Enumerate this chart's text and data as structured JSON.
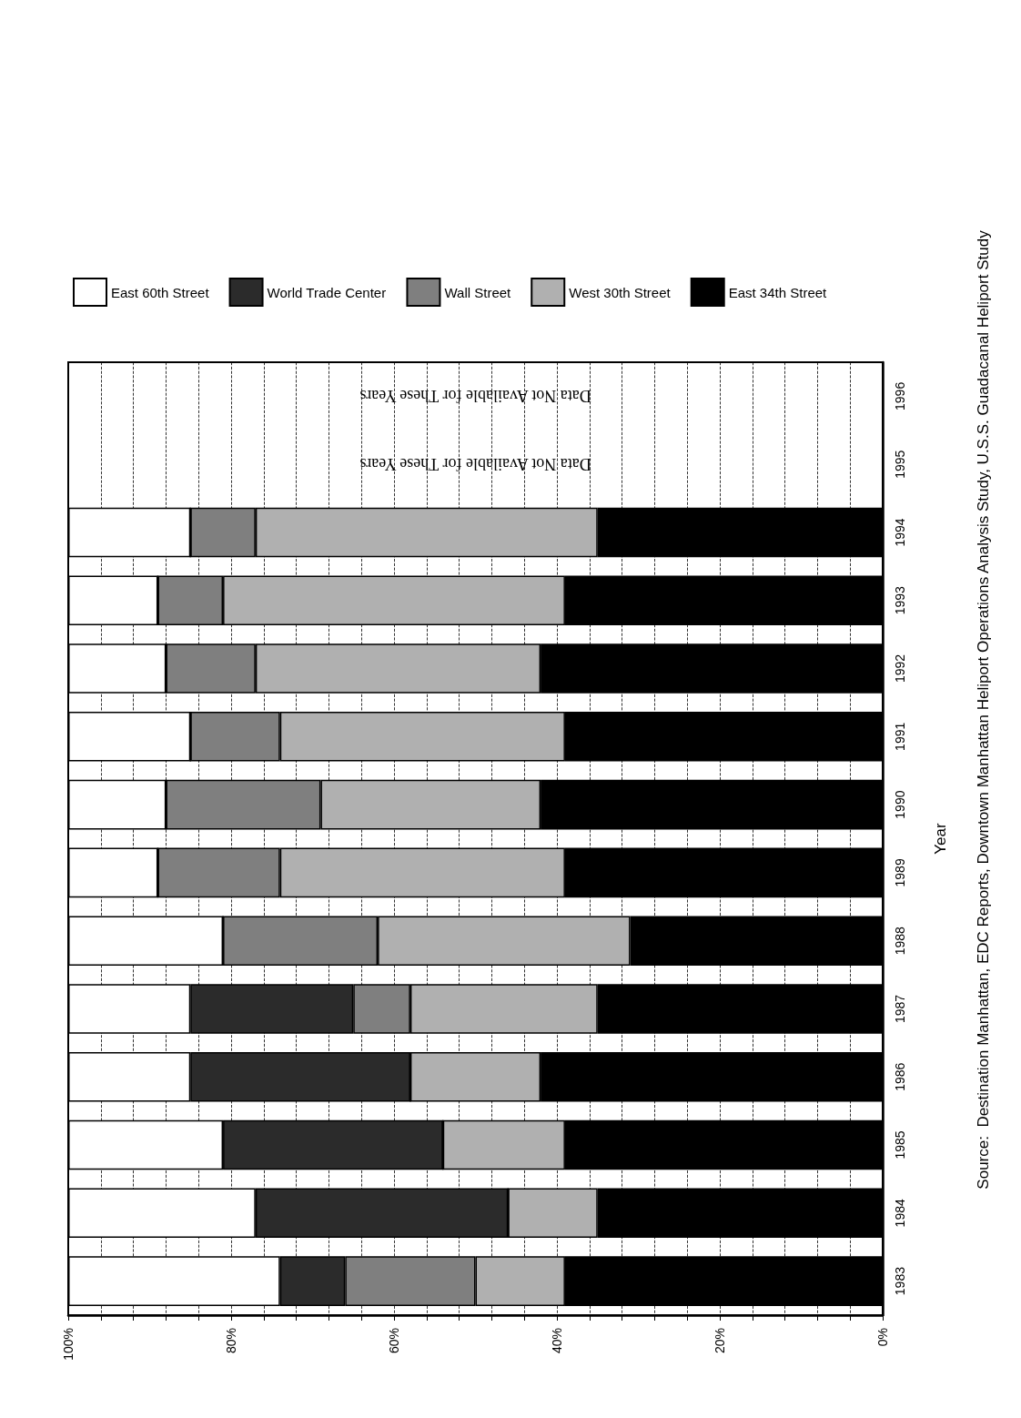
{
  "chart_data": {
    "type": "bar",
    "stacked": true,
    "orientation": "horizontal",
    "ylabel": "Year",
    "categories": [
      "1996",
      "1995",
      "1994",
      "1993",
      "1992",
      "1991",
      "1990",
      "1989",
      "1988",
      "1987",
      "1986",
      "1985",
      "1984",
      "1983"
    ],
    "series": [
      {
        "name": "East 34th Street",
        "color": "#000000",
        "values": [
          null,
          null,
          35,
          39,
          42,
          39,
          42,
          39,
          31,
          35,
          42,
          39,
          35,
          39
        ]
      },
      {
        "name": "West 30th Street",
        "color": "#b0b0b0",
        "values": [
          null,
          null,
          42,
          42,
          35,
          35,
          27,
          35,
          31,
          23,
          16,
          15,
          11,
          11
        ]
      },
      {
        "name": "Wall Street",
        "color": "#7f7f7f",
        "values": [
          null,
          null,
          8,
          8,
          11,
          11,
          19,
          15,
          19,
          7,
          0,
          0,
          0,
          16
        ]
      },
      {
        "name": "World Trade Center",
        "color": "#2b2b2b",
        "values": [
          null,
          null,
          0,
          0,
          0,
          0,
          0,
          0,
          0,
          20,
          27,
          27,
          31,
          8
        ]
      },
      {
        "name": "East 60th Street",
        "color": "#ffffff",
        "values": [
          null,
          null,
          15,
          11,
          12,
          15,
          12,
          11,
          19,
          15,
          15,
          19,
          23,
          26
        ]
      }
    ],
    "xlim": [
      100,
      0
    ],
    "xticks": [
      {
        "value": 0,
        "label": "0%"
      },
      {
        "value": 4,
        "label": null
      },
      {
        "value": 8,
        "label": null
      },
      {
        "value": 12,
        "label": null
      },
      {
        "value": 16,
        "label": null
      },
      {
        "value": 20,
        "label": "20%"
      },
      {
        "value": 24,
        "label": null
      },
      {
        "value": 28,
        "label": null
      },
      {
        "value": 32,
        "label": null
      },
      {
        "value": 36,
        "label": null
      },
      {
        "value": 40,
        "label": "40%"
      },
      {
        "value": 44,
        "label": null
      },
      {
        "value": 48,
        "label": null
      },
      {
        "value": 52,
        "label": null
      },
      {
        "value": 56,
        "label": null
      },
      {
        "value": 60,
        "label": "60%"
      },
      {
        "value": 64,
        "label": null
      },
      {
        "value": 68,
        "label": null
      },
      {
        "value": 72,
        "label": null
      },
      {
        "value": 76,
        "label": null
      },
      {
        "value": 80,
        "label": "80%"
      },
      {
        "value": 84,
        "label": null
      },
      {
        "value": 88,
        "label": null
      },
      {
        "value": 92,
        "label": null
      },
      {
        "value": 96,
        "label": null
      },
      {
        "value": 100,
        "label": "100%"
      }
    ],
    "grid": "x",
    "legend": "top",
    "annotations": [
      "Data Not Available for These Years",
      "Data Not Available for These Years",
      "Source:  Destination Manhattan, EDC Reports, Downtown Manhattan Heliport Operations Analysis Study, U.S.S. Guadacanal Heliport Study"
    ]
  }
}
